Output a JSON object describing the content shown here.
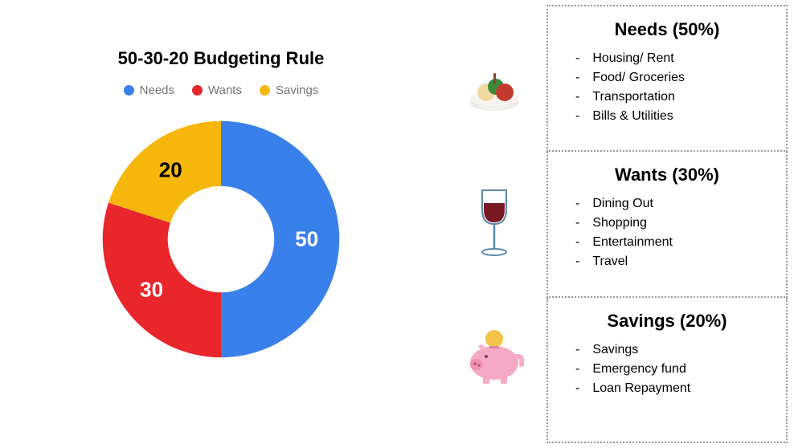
{
  "chart": {
    "title": "50-30-20 Budgeting Rule",
    "type": "donut",
    "inner_radius_ratio": 0.45,
    "background_color": "#ffffff",
    "legend_text_color": "#757575",
    "title_fontsize": 22,
    "legend_fontsize": 15,
    "value_label_fontsize": 26,
    "slices": [
      {
        "key": "needs",
        "label": "Needs",
        "value": 50,
        "color": "#3a80ea",
        "value_label_color": "#ffffff"
      },
      {
        "key": "wants",
        "label": "Wants",
        "value": 30,
        "color": "#e8262b",
        "value_label_color": "#ffffff"
      },
      {
        "key": "savings",
        "label": "Savings",
        "value": 20,
        "color": "#f6b70d",
        "value_label_color": "#000000"
      }
    ]
  },
  "icons": {
    "needs": {
      "name": "food-bowl-icon"
    },
    "wants": {
      "name": "wine-glass-icon"
    },
    "savings": {
      "name": "piggy-bank-icon"
    }
  },
  "sections": [
    {
      "key": "needs",
      "title": "Needs (50%)",
      "items": [
        "Housing/ Rent",
        "Food/ Groceries",
        "Transportation",
        "Bills & Utilities"
      ]
    },
    {
      "key": "wants",
      "title": "Wants (30%)",
      "items": [
        "Dining Out",
        "Shopping",
        "Entertainment",
        "Travel"
      ]
    },
    {
      "key": "savings",
      "title": "Savings (20%)",
      "items": [
        "Savings",
        "Emergency fund",
        "Loan Repayment"
      ]
    }
  ]
}
